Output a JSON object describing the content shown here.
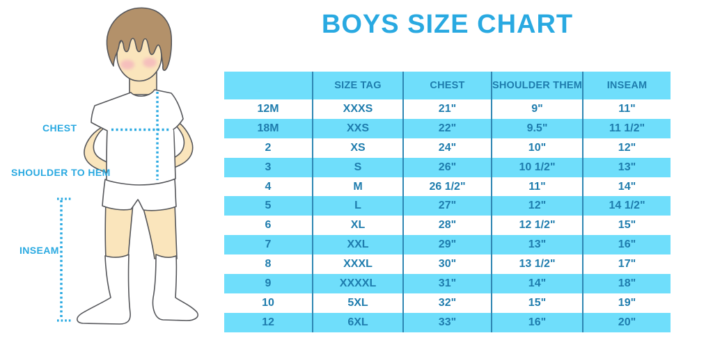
{
  "title": "BOYS SIZE CHART",
  "colors": {
    "accent_blue": "#29A9E1",
    "row_blue": "#6FDEFB",
    "table_text_blue": "#1E7CAD",
    "divider_blue": "#2E86B2",
    "skin": "#FAE5BC",
    "hair_brown": "#B3916A",
    "outline_gray": "#55565A",
    "cheek_pink": "#F2A6BC"
  },
  "figure": {
    "labels": {
      "chest": "CHEST",
      "shoulder_to_hem": "SHOULDER TO HEM",
      "inseam": "INSEAM"
    }
  },
  "chart_data": {
    "type": "table",
    "title": "BOYS SIZE CHART",
    "columns": [
      "",
      "SIZE TAG",
      "CHEST",
      "SHOULDER THEM",
      "INSEAM"
    ],
    "rows": [
      [
        "12M",
        "XXXS",
        "21\"",
        "9\"",
        "11\""
      ],
      [
        "18M",
        "XXS",
        "22\"",
        "9.5\"",
        "11 1/2\""
      ],
      [
        "2",
        "XS",
        "24\"",
        "10\"",
        "12\""
      ],
      [
        "3",
        "S",
        "26\"",
        "10 1/2\"",
        "13\""
      ],
      [
        "4",
        "M",
        "26 1/2\"",
        "11\"",
        "14\""
      ],
      [
        "5",
        "L",
        "27\"",
        "12\"",
        "14 1/2\""
      ],
      [
        "6",
        "XL",
        "28\"",
        "12 1/2\"",
        "15\""
      ],
      [
        "7",
        "XXL",
        "29\"",
        "13\"",
        "16\""
      ],
      [
        "8",
        "XXXL",
        "30\"",
        "13 1/2\"",
        "17\""
      ],
      [
        "9",
        "XXXXL",
        "31\"",
        "14\"",
        "18\""
      ],
      [
        "10",
        "5XL",
        "32\"",
        "15\"",
        "19\""
      ],
      [
        "12",
        "6XL",
        "33\"",
        "16\"",
        "20\""
      ]
    ],
    "layout": {
      "header_background": "#6FDEFB",
      "alternating_rows": [
        "white",
        "#6FDEFB"
      ],
      "column_dividers": true,
      "row_dividers": false
    }
  }
}
